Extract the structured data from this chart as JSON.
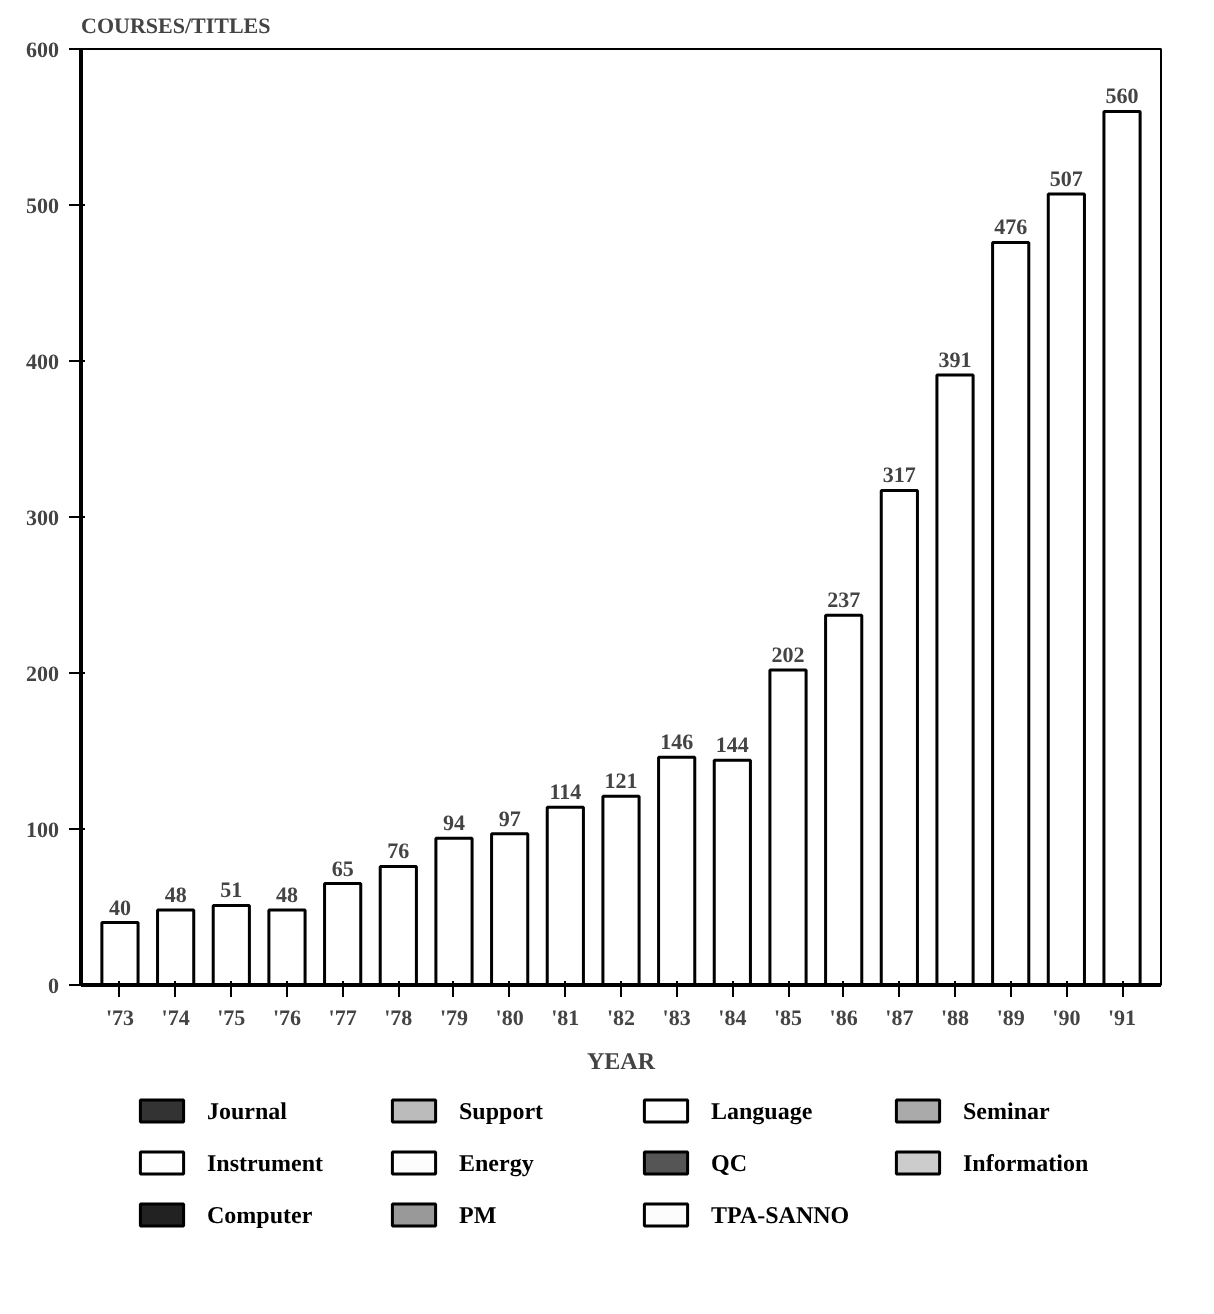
{
  "chart_data": {
    "type": "bar",
    "ylabel": "COURSES/TITLES",
    "xlabel": "YEAR",
    "categories": [
      "'73",
      "'74",
      "'75",
      "'76",
      "'77",
      "'78",
      "'79",
      "'80",
      "'81",
      "'82",
      "'83",
      "'84",
      "'85",
      "'86",
      "'87",
      "'88",
      "'89",
      "'90",
      "'91"
    ],
    "values": [
      40,
      48,
      51,
      48,
      65,
      76,
      94,
      97,
      114,
      121,
      146,
      144,
      202,
      237,
      317,
      391,
      476,
      507,
      560
    ],
    "color": "#ffffff",
    "data_labels": true,
    "series": [
      {
        "name": "Journal",
        "color": "#333333",
        "values": [
          null,
          null,
          null,
          null,
          null,
          null,
          null,
          null,
          null,
          null,
          null,
          null,
          null,
          null,
          null,
          null,
          null,
          null,
          null
        ]
      },
      {
        "name": "Instrument",
        "color": "#fefefe",
        "values": [
          null,
          null,
          null,
          null,
          null,
          null,
          null,
          null,
          null,
          null,
          null,
          null,
          null,
          null,
          null,
          null,
          null,
          null,
          null
        ]
      },
      {
        "name": "Computer",
        "color": "#222222",
        "values": [
          null,
          null,
          null,
          null,
          null,
          null,
          null,
          null,
          null,
          null,
          null,
          null,
          null,
          null,
          null,
          null,
          null,
          null,
          null
        ]
      },
      {
        "name": "Support",
        "color": "#bbbbbb",
        "values": [
          null,
          null,
          null,
          null,
          null,
          null,
          null,
          null,
          null,
          null,
          null,
          null,
          null,
          null,
          null,
          null,
          null,
          null,
          null
        ]
      },
      {
        "name": "Energy",
        "color": "#fdfdfd",
        "values": [
          null,
          null,
          null,
          null,
          null,
          null,
          null,
          null,
          null,
          null,
          null,
          null,
          null,
          null,
          null,
          null,
          null,
          null,
          null
        ]
      },
      {
        "name": "PM",
        "color": "#999999",
        "values": [
          null,
          null,
          null,
          null,
          null,
          null,
          null,
          null,
          null,
          null,
          null,
          null,
          null,
          null,
          null,
          null,
          null,
          null,
          null
        ]
      },
      {
        "name": "Language",
        "color": "#ffffff",
        "values": [
          null,
          null,
          null,
          null,
          null,
          null,
          null,
          null,
          null,
          null,
          null,
          null,
          null,
          null,
          null,
          null,
          null,
          null,
          null
        ]
      },
      {
        "name": "QC",
        "color": "#555555",
        "values": [
          null,
          null,
          null,
          null,
          null,
          null,
          null,
          null,
          null,
          null,
          null,
          null,
          null,
          null,
          null,
          null,
          null,
          null,
          null
        ]
      },
      {
        "name": "TPA-SANNO",
        "color": "#fcfcfc",
        "values": [
          null,
          null,
          null,
          null,
          null,
          null,
          null,
          null,
          null,
          null,
          null,
          null,
          null,
          null,
          null,
          null,
          null,
          null,
          null
        ]
      },
      {
        "name": "Seminar",
        "color": "#aaaaaa",
        "values": [
          null,
          null,
          null,
          null,
          null,
          null,
          null,
          null,
          null,
          null,
          null,
          null,
          null,
          null,
          null,
          null,
          null,
          null,
          null
        ]
      },
      {
        "name": "Information",
        "color": "#cccccc",
        "values": [
          null,
          null,
          null,
          null,
          null,
          null,
          null,
          null,
          null,
          null,
          null,
          null,
          null,
          null,
          null,
          null,
          null,
          null,
          null
        ]
      }
    ],
    "ylim": [
      0,
      600
    ],
    "yticks": [
      0,
      100,
      200,
      300,
      400,
      500,
      600
    ],
    "grid": false,
    "legend": "bottom"
  }
}
